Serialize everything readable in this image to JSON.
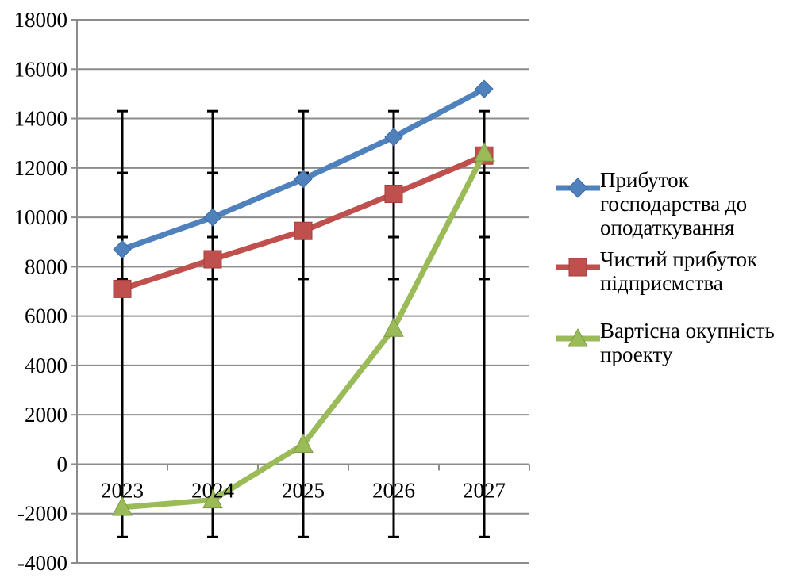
{
  "chart_data": {
    "type": "line",
    "title": "",
    "xlabel": "",
    "ylabel": "",
    "x": [
      "2023",
      "2024",
      "2025",
      "2026",
      "2027"
    ],
    "ylim": [
      -4000,
      18000
    ],
    "ytick_step": 2000,
    "grid": "horizontal",
    "legend_position": "right",
    "series": [
      {
        "name": "Прибуток господарства до оподаткування",
        "color": "#4F81BD",
        "marker": "diamond",
        "values": [
          8700,
          10000,
          11550,
          13250,
          15200
        ]
      },
      {
        "name": "Чистий прибуток підприємства",
        "color": "#C0504D",
        "marker": "square",
        "values": [
          7100,
          8300,
          9450,
          10950,
          12500
        ]
      },
      {
        "name": "Вартісна окупність проекту",
        "color": "#9BBB59",
        "marker": "triangle",
        "values": [
          -1750,
          -1450,
          800,
          5500,
          12600
        ]
      }
    ],
    "error_bars": {
      "color": "#000000",
      "low": -2950,
      "high": 14300,
      "caps": [
        -2950,
        7500,
        9200,
        11800,
        14300
      ]
    }
  }
}
